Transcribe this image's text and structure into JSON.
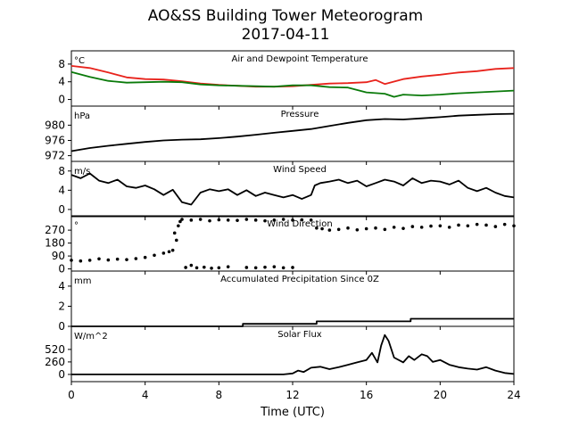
{
  "figure": {
    "title_line1": "AO&SS Building Tower Meteorogram",
    "title_line2": "2017-04-11",
    "xlabel": "Time (UTC)",
    "x_ticks": [
      0,
      4,
      8,
      12,
      16,
      20,
      24
    ],
    "xlim": [
      0,
      24
    ]
  },
  "chart_data": [
    {
      "type": "line",
      "title": "Air and Dewpoint Temperature",
      "unit_label": "°C",
      "ylim": [
        -1.5,
        11
      ],
      "y_ticks": [
        0,
        4,
        8
      ],
      "series": [
        {
          "color": "#e8231c",
          "x": [
            0,
            1,
            2,
            3,
            4,
            5,
            6,
            7,
            8,
            9,
            10,
            11,
            12,
            13,
            14,
            15,
            16,
            16.5,
            17,
            18,
            19,
            20,
            21,
            22,
            23,
            24
          ],
          "y": [
            7.6,
            7.1,
            6.1,
            5.0,
            4.6,
            4.5,
            4.1,
            3.6,
            3.3,
            3.1,
            2.9,
            2.9,
            3.0,
            3.3,
            3.6,
            3.7,
            3.9,
            4.4,
            3.5,
            4.6,
            5.2,
            5.6,
            6.1,
            6.4,
            6.9,
            7.1
          ]
        },
        {
          "color": "#0a7a0a",
          "x": [
            0,
            1,
            2,
            3,
            4,
            5,
            6,
            7,
            8,
            9,
            10,
            11,
            12,
            13,
            14,
            15,
            16,
            17,
            17.5,
            18,
            19,
            20,
            21,
            22,
            23,
            24
          ],
          "y": [
            6.2,
            5.1,
            4.2,
            3.8,
            3.9,
            4.0,
            3.9,
            3.4,
            3.2,
            3.1,
            3.0,
            2.9,
            3.2,
            3.2,
            2.8,
            2.7,
            1.6,
            1.3,
            0.6,
            1.1,
            0.9,
            1.1,
            1.4,
            1.6,
            1.8,
            2.0
          ]
        }
      ]
    },
    {
      "type": "line",
      "title": "Pressure",
      "unit_label": "hPa",
      "ylim": [
        970.5,
        985
      ],
      "y_ticks": [
        972,
        976,
        980
      ],
      "series": [
        {
          "color": "#000000",
          "x": [
            0,
            1,
            2,
            3,
            4,
            5,
            6,
            7,
            8,
            9,
            10,
            11,
            12,
            13,
            14,
            15,
            16,
            17,
            18,
            19,
            20,
            21,
            22,
            23,
            24
          ],
          "y": [
            973.2,
            974.0,
            974.6,
            975.1,
            975.6,
            976.0,
            976.2,
            976.3,
            976.6,
            977.0,
            977.5,
            978.0,
            978.5,
            979.0,
            979.8,
            980.6,
            981.3,
            981.6,
            981.5,
            981.8,
            982.1,
            982.5,
            982.7,
            982.9,
            983.0
          ]
        }
      ]
    },
    {
      "type": "line",
      "title": "Wind Speed",
      "unit_label": "m/s",
      "ylim": [
        -1.5,
        10
      ],
      "y_ticks": [
        0,
        4,
        8
      ],
      "series": [
        {
          "color": "#000000",
          "x": [
            0,
            0.5,
            1,
            1.5,
            2,
            2.5,
            3,
            3.5,
            4,
            4.5,
            5,
            5.5,
            6,
            6.5,
            7,
            7.5,
            8,
            8.5,
            9,
            9.5,
            10,
            10.5,
            11,
            11.5,
            12,
            12.5,
            13,
            13.2,
            13.5,
            14,
            14.5,
            15,
            15.5,
            16,
            16.5,
            17,
            17.5,
            18,
            18.5,
            19,
            19.5,
            20,
            20.5,
            21,
            21.5,
            22,
            22.5,
            23,
            23.5,
            24
          ],
          "y": [
            7.2,
            6.5,
            7.5,
            6.0,
            5.5,
            6.2,
            4.8,
            4.5,
            5.0,
            4.2,
            3.0,
            4.1,
            1.5,
            1.0,
            3.5,
            4.2,
            3.8,
            4.2,
            3.0,
            4.0,
            2.8,
            3.5,
            3.0,
            2.5,
            3.0,
            2.2,
            3.0,
            5.0,
            5.5,
            5.8,
            6.2,
            5.5,
            6.0,
            4.8,
            5.5,
            6.2,
            5.8,
            5.0,
            6.5,
            5.5,
            6.0,
            5.8,
            5.2,
            6.0,
            4.5,
            3.8,
            4.5,
            3.5,
            2.8,
            2.5
          ]
        }
      ]
    },
    {
      "type": "scatter",
      "title": "Wind Direction",
      "unit_label": "°",
      "ylim": [
        -15,
        370
      ],
      "y_ticks": [
        0,
        90,
        180,
        270
      ],
      "series": [
        {
          "color": "#000000",
          "x": [
            0,
            0.5,
            1,
            1.5,
            2,
            2.5,
            3,
            3.5,
            4,
            4.5,
            5,
            5.3,
            5.5,
            5.6,
            5.7,
            5.8,
            5.9,
            6,
            6.5,
            7,
            7.5,
            8,
            8.5,
            9,
            9.5,
            10,
            10.5,
            11,
            11.5,
            12,
            12.5,
            13,
            13.3,
            13.6,
            14,
            14.5,
            15,
            15.5,
            16,
            16.5,
            17,
            17.5,
            18,
            18.5,
            19,
            19.5,
            20,
            20.5,
            21,
            21.5,
            22,
            22.5,
            23,
            23.5,
            24
          ],
          "y": [
            60,
            55,
            60,
            70,
            62,
            68,
            65,
            72,
            80,
            95,
            110,
            120,
            130,
            250,
            200,
            300,
            330,
            345,
            340,
            345,
            335,
            342,
            340,
            338,
            345,
            340,
            335,
            340,
            345,
            340,
            342,
            340,
            285,
            280,
            270,
            275,
            285,
            272,
            280,
            285,
            275,
            290,
            282,
            295,
            290,
            298,
            300,
            290,
            305,
            300,
            310,
            305,
            295,
            310,
            300
          ]
        },
        {
          "color": "#000000",
          "x": [
            6.2,
            6.5,
            6.8,
            7.2,
            7.6,
            8.0,
            8.5,
            9.5,
            10.0,
            10.5,
            11.0,
            11.5,
            12.0
          ],
          "y": [
            10,
            25,
            8,
            12,
            5,
            8,
            15,
            10,
            8,
            12,
            15,
            8,
            10
          ]
        }
      ]
    },
    {
      "type": "line",
      "title": "Accumulated Precipitation Since 0Z",
      "unit_label": "mm",
      "ylim": [
        0,
        5.5
      ],
      "y_ticks": [
        0,
        2,
        4
      ],
      "series": [
        {
          "color": "#000000",
          "x": [
            0,
            9.3,
            9.3,
            13.3,
            13.3,
            18.4,
            18.4,
            24
          ],
          "y": [
            0,
            0,
            0.25,
            0.25,
            0.5,
            0.5,
            0.75,
            0.75
          ]
        }
      ]
    },
    {
      "type": "line",
      "title": "Solar Flux",
      "unit_label": "W/m^2",
      "ylim": [
        -150,
        1000
      ],
      "y_ticks": [
        0,
        260,
        520
      ],
      "series": [
        {
          "color": "#000000",
          "x": [
            0,
            11.5,
            12,
            12.3,
            12.6,
            13,
            13.5,
            14,
            14.5,
            15,
            15.5,
            16,
            16.3,
            16.6,
            16.8,
            17,
            17.2,
            17.5,
            18,
            18.3,
            18.6,
            19,
            19.3,
            19.6,
            20,
            20.5,
            21,
            21.5,
            22,
            22.5,
            23,
            23.5,
            24
          ],
          "y": [
            0,
            0,
            20,
            80,
            50,
            140,
            160,
            110,
            150,
            200,
            250,
            300,
            450,
            250,
            600,
            820,
            700,
            350,
            250,
            380,
            300,
            420,
            380,
            260,
            300,
            200,
            150,
            120,
            100,
            150,
            80,
            30,
            10
          ]
        }
      ]
    }
  ]
}
